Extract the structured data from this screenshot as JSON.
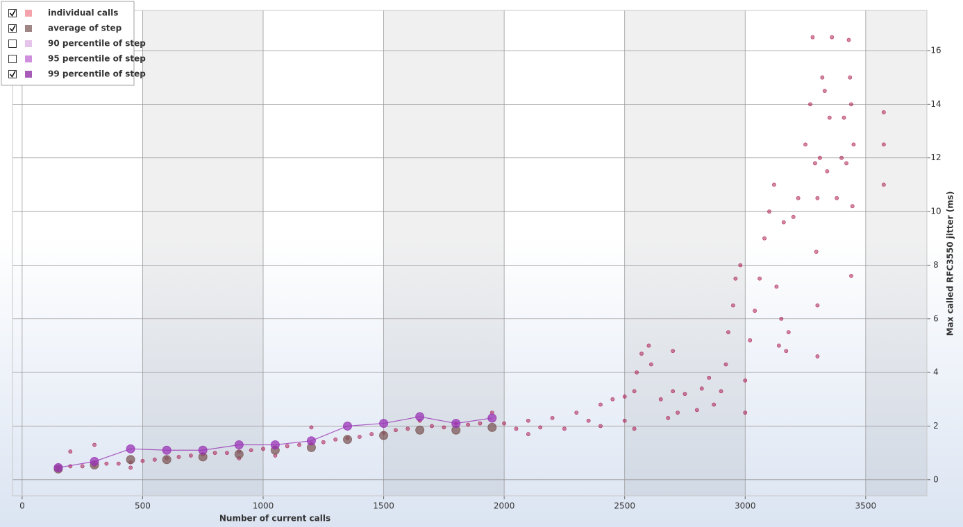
{
  "chart_data": {
    "type": "scatter",
    "xlabel": "Number of current calls",
    "ylabel": "Max called RFC3550 jitter (ms)",
    "xlim": [
      -40,
      3754
    ],
    "ylim": [
      -0.6,
      17.5
    ],
    "xticks": [
      0,
      500,
      1000,
      1500,
      2000,
      2500,
      3000,
      3500
    ],
    "yticks": [
      0,
      2,
      4,
      6,
      8,
      10,
      12,
      14,
      16
    ],
    "grid": true,
    "series": [
      {
        "name": "individual calls",
        "color": "#f4a3ac",
        "mark_color": "#a80d45",
        "checked": true,
        "style": "points",
        "x": [
          150,
          150,
          200,
          200,
          250,
          300,
          300,
          350,
          400,
          450,
          450,
          500,
          550,
          600,
          650,
          700,
          750,
          800,
          850,
          900,
          900,
          950,
          1000,
          1050,
          1050,
          1100,
          1150,
          1200,
          1200,
          1250,
          1300,
          1350,
          1400,
          1450,
          1500,
          1550,
          1600,
          1650,
          1700,
          1750,
          1800,
          1850,
          1900,
          1950,
          2000,
          2050,
          2100,
          2100,
          2150,
          2200,
          2250,
          2300,
          2350,
          2400,
          2400,
          2450,
          2500,
          2500,
          2540,
          2540,
          2550,
          2570,
          2600,
          2610,
          2650,
          2680,
          2700,
          2700,
          2720,
          2750,
          2800,
          2820,
          2850,
          2870,
          2900,
          2920,
          2930,
          2950,
          2960,
          2980,
          3000,
          3000,
          3020,
          3040,
          3060,
          3080,
          3100,
          3120,
          3130,
          3140,
          3150,
          3160,
          3170,
          3180,
          3200,
          3220,
          3250,
          3270,
          3280,
          3290,
          3295,
          3300,
          3300,
          3300,
          3310,
          3320,
          3330,
          3340,
          3350,
          3360,
          3380,
          3400,
          3410,
          3420,
          3430,
          3435,
          3440,
          3440,
          3445,
          3450,
          3575,
          3575,
          3575
        ],
        "values": [
          0.35,
          0.45,
          0.5,
          1.05,
          0.5,
          0.55,
          1.3,
          0.6,
          0.6,
          0.65,
          0.45,
          0.7,
          0.75,
          0.8,
          0.85,
          0.9,
          0.95,
          1.0,
          1.0,
          1.05,
          0.8,
          1.1,
          1.15,
          1.2,
          0.9,
          1.25,
          1.3,
          1.35,
          1.95,
          1.4,
          1.5,
          1.55,
          1.6,
          1.7,
          1.75,
          1.85,
          1.9,
          2.2,
          2.0,
          1.95,
          2.1,
          2.05,
          2.1,
          2.5,
          2.1,
          1.9,
          2.2,
          1.7,
          1.95,
          2.3,
          1.9,
          2.5,
          2.2,
          2.8,
          2.0,
          3.0,
          2.2,
          3.1,
          1.9,
          3.3,
          4.0,
          4.7,
          5.0,
          4.3,
          3.0,
          2.3,
          4.8,
          3.3,
          2.5,
          3.2,
          2.6,
          3.4,
          3.8,
          2.8,
          3.3,
          4.3,
          5.5,
          6.5,
          7.5,
          8.0,
          3.7,
          2.5,
          5.2,
          6.3,
          7.5,
          9.0,
          10.0,
          11.0,
          7.2,
          5.0,
          6.0,
          9.6,
          4.8,
          5.5,
          9.8,
          10.5,
          12.5,
          14.0,
          16.5,
          11.8,
          8.5,
          4.6,
          6.5,
          10.5,
          12.0,
          15.0,
          14.5,
          11.5,
          13.5,
          16.5,
          10.5,
          12.0,
          13.5,
          11.8,
          16.4,
          15.0,
          14.0,
          7.6,
          10.2,
          12.5,
          13.7,
          12.5,
          11.0
        ]
      },
      {
        "name": "average of step",
        "color": "#a08585",
        "mark_color": "#7d5a5a",
        "checked": true,
        "style": "points",
        "x": [
          150,
          300,
          450,
          600,
          750,
          900,
          1050,
          1200,
          1350,
          1500,
          1650,
          1800,
          1950
        ],
        "values": [
          0.4,
          0.55,
          0.75,
          0.75,
          0.85,
          0.95,
          1.1,
          1.2,
          1.5,
          1.65,
          1.85,
          1.85,
          1.95
        ]
      },
      {
        "name": "90 percentile of step",
        "color": "#e6c3ea",
        "checked": false
      },
      {
        "name": "95 percentile of step",
        "color": "#cf8fde",
        "checked": false
      },
      {
        "name": "99 percentile of step",
        "color": "#a85ab8",
        "mark_color": "#9a35b5",
        "checked": true,
        "style": "line-points",
        "x": [
          150,
          300,
          450,
          600,
          750,
          900,
          1050,
          1200,
          1350,
          1500,
          1650,
          1800,
          1950
        ],
        "values": [
          0.45,
          0.68,
          1.15,
          1.1,
          1.1,
          1.3,
          1.3,
          1.45,
          2.0,
          2.1,
          2.35,
          2.1,
          2.3
        ]
      }
    ]
  }
}
